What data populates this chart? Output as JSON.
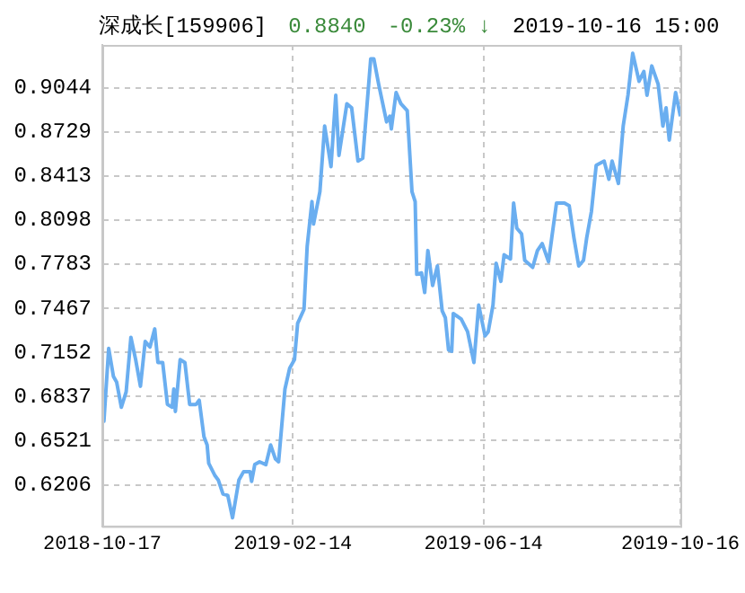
{
  "chart_data": {
    "type": "line",
    "title": "深成长[159906]",
    "annotations": [
      "0.8840",
      "-0.23% ↓",
      "2019-10-16 15:00"
    ],
    "x": [
      "2018-10-17",
      "2018-10-18",
      "2018-10-21",
      "2018-10-24",
      "2018-10-26",
      "2018-10-29",
      "2018-11-01",
      "2018-11-04",
      "2018-11-07",
      "2018-11-10",
      "2018-11-13",
      "2018-11-16",
      "2018-11-19",
      "2018-11-21",
      "2018-11-24",
      "2018-11-27",
      "2018-11-30",
      "2018-12-01",
      "2018-12-02",
      "2018-12-05",
      "2018-12-08",
      "2018-12-11",
      "2018-12-15",
      "2018-12-17",
      "2018-12-20",
      "2018-12-22",
      "2018-12-23",
      "2018-12-27",
      "2018-12-29",
      "2019-01-01",
      "2019-01-04",
      "2019-01-07",
      "2019-01-11",
      "2019-01-14",
      "2019-01-18",
      "2019-01-19",
      "2019-01-21",
      "2019-01-24",
      "2019-01-28",
      "2019-01-31",
      "2019-02-03",
      "2019-02-05",
      "2019-02-09",
      "2019-02-12",
      "2019-02-15",
      "2019-02-17",
      "2019-02-21",
      "2019-02-23",
      "2019-02-26",
      "2019-02-27",
      "2019-03-03",
      "2019-03-06",
      "2019-03-10",
      "2019-03-13",
      "2019-03-15",
      "2019-03-20",
      "2019-03-23",
      "2019-03-27",
      "2019-03-30",
      "2019-04-04",
      "2019-04-06",
      "2019-04-09",
      "2019-04-14",
      "2019-04-16",
      "2019-04-17",
      "2019-04-20",
      "2019-04-23",
      "2019-04-27",
      "2019-04-30",
      "2019-05-02",
      "2019-05-03",
      "2019-05-06",
      "2019-05-08",
      "2019-05-10",
      "2019-05-13",
      "2019-05-16",
      "2019-05-19",
      "2019-05-21",
      "2019-05-23",
      "2019-05-25",
      "2019-05-26",
      "2019-05-31",
      "2019-06-04",
      "2019-06-08",
      "2019-06-11",
      "2019-06-15",
      "2019-06-17",
      "2019-06-20",
      "2019-06-22",
      "2019-06-25",
      "2019-06-27",
      "2019-07-01",
      "2019-07-03",
      "2019-07-05",
      "2019-07-08",
      "2019-07-10",
      "2019-07-15",
      "2019-07-18",
      "2019-07-21",
      "2019-07-25",
      "2019-07-27",
      "2019-07-30",
      "2019-08-04",
      "2019-08-07",
      "2019-08-10",
      "2019-08-13",
      "2019-08-16",
      "2019-08-18",
      "2019-08-21",
      "2019-08-24",
      "2019-08-29",
      "2019-09-01",
      "2019-09-03",
      "2019-09-07",
      "2019-09-10",
      "2019-09-13",
      "2019-09-16",
      "2019-09-20",
      "2019-09-23",
      "2019-09-25",
      "2019-09-28",
      "2019-10-02",
      "2019-10-05",
      "2019-10-07",
      "2019-10-09",
      "2019-10-13",
      "2019-10-16"
    ],
    "values": [
      0.668,
      0.666,
      0.718,
      0.698,
      0.694,
      0.676,
      0.687,
      0.726,
      0.71,
      0.691,
      0.723,
      0.719,
      0.732,
      0.708,
      0.708,
      0.678,
      0.676,
      0.689,
      0.673,
      0.71,
      0.708,
      0.678,
      0.678,
      0.681,
      0.655,
      0.649,
      0.636,
      0.627,
      0.624,
      0.614,
      0.613,
      0.597,
      0.624,
      0.63,
      0.63,
      0.623,
      0.635,
      0.637,
      0.635,
      0.649,
      0.639,
      0.637,
      0.689,
      0.704,
      0.71,
      0.736,
      0.746,
      0.791,
      0.823,
      0.807,
      0.83,
      0.877,
      0.848,
      0.899,
      0.856,
      0.893,
      0.89,
      0.852,
      0.854,
      0.925,
      0.925,
      0.907,
      0.88,
      0.884,
      0.875,
      0.901,
      0.893,
      0.888,
      0.83,
      0.823,
      0.771,
      0.772,
      0.758,
      0.788,
      0.763,
      0.777,
      0.745,
      0.74,
      0.717,
      0.716,
      0.743,
      0.739,
      0.73,
      0.708,
      0.749,
      0.727,
      0.73,
      0.749,
      0.779,
      0.766,
      0.785,
      0.782,
      0.822,
      0.804,
      0.8,
      0.781,
      0.776,
      0.788,
      0.793,
      0.78,
      0.797,
      0.822,
      0.822,
      0.82,
      0.797,
      0.777,
      0.781,
      0.797,
      0.816,
      0.849,
      0.852,
      0.839,
      0.852,
      0.836,
      0.877,
      0.899,
      0.929,
      0.909,
      0.916,
      0.899,
      0.92,
      0.907,
      0.877,
      0.89,
      0.867,
      0.901,
      0.884
    ],
    "color": "#6aaef0",
    "xlim": [
      "2018-10-17",
      "2019-10-16"
    ],
    "xticks": [
      "2018-10-17",
      "2019-02-14",
      "2019-06-14",
      "2019-10-16"
    ],
    "ylim": [
      0.591,
      0.935
    ],
    "yticks": [
      0.6206,
      0.6521,
      0.6837,
      0.7152,
      0.7467,
      0.7783,
      0.8098,
      0.8413,
      0.8729,
      0.9044
    ],
    "grid": true
  }
}
